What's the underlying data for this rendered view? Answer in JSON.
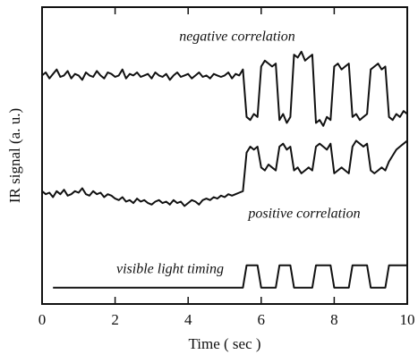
{
  "chart_data": {
    "type": "line",
    "x_label": "Time ( sec )",
    "y_label": "IR signal (a. u.)",
    "annotations": [
      "negative correlation",
      "positive correlation",
      "visible light timing"
    ],
    "x": [
      0,
      0.1,
      0.2,
      0.3,
      0.4,
      0.5,
      0.6,
      0.7,
      0.8,
      0.9,
      1,
      1.1,
      1.2,
      1.3,
      1.4,
      1.5,
      1.6,
      1.7,
      1.8,
      1.9,
      2,
      2.1,
      2.2,
      2.3,
      2.4,
      2.5,
      2.6,
      2.7,
      2.8,
      2.9,
      3,
      3.1,
      3.2,
      3.3,
      3.4,
      3.5,
      3.6,
      3.7,
      3.8,
      3.9,
      4,
      4.1,
      4.2,
      4.3,
      4.4,
      4.5,
      4.6,
      4.7,
      4.8,
      4.9,
      5,
      5.1,
      5.2,
      5.3,
      5.4,
      5.5,
      5.6,
      5.7,
      5.8,
      5.9,
      6,
      6.1,
      6.2,
      6.3,
      6.4,
      6.5,
      6.6,
      6.7,
      6.8,
      6.9,
      7,
      7.1,
      7.2,
      7.3,
      7.4,
      7.5,
      7.6,
      7.7,
      7.8,
      7.9,
      8,
      8.1,
      8.2,
      8.3,
      8.4,
      8.5,
      8.6,
      8.7,
      8.8,
      8.9,
      9,
      9.1,
      9.2,
      9.3,
      9.4,
      9.5,
      9.6,
      9.7,
      9.8,
      9.9,
      10
    ],
    "series": [
      {
        "color": "#111111",
        "values": [
          7.7,
          7.8,
          7.6,
          7.75,
          7.9,
          7.65,
          7.7,
          7.85,
          7.6,
          7.75,
          7.7,
          7.55,
          7.8,
          7.7,
          7.65,
          7.85,
          7.7,
          7.6,
          7.8,
          7.75,
          7.65,
          7.7,
          7.9,
          7.6,
          7.75,
          7.7,
          7.8,
          7.65,
          7.7,
          7.75,
          7.6,
          7.8,
          7.7,
          7.65,
          7.75,
          7.55,
          7.7,
          7.8,
          7.65,
          7.7,
          7.75,
          7.6,
          7.7,
          7.8,
          7.65,
          7.7,
          7.6,
          7.75,
          7.7,
          7.65,
          7.7,
          7.8,
          7.6,
          7.75,
          7.7,
          7.9,
          6.3,
          6.2,
          6.4,
          6.3,
          8.0,
          8.2,
          8.1,
          8.0,
          8.1,
          6.2,
          6.4,
          6.1,
          6.3,
          8.4,
          8.3,
          8.5,
          8.2,
          8.3,
          8.4,
          6.1,
          6.2,
          6.0,
          6.3,
          6.2,
          8.0,
          8.1,
          7.9,
          8.0,
          8.1,
          6.3,
          6.4,
          6.2,
          6.3,
          6.4,
          7.9,
          8.0,
          8.1,
          7.9,
          8.0,
          6.3,
          6.2,
          6.4,
          6.3,
          6.5,
          6.4
        ]
      },
      {
        "color": "#111111",
        "values": [
          3.8,
          3.7,
          3.75,
          3.6,
          3.8,
          3.7,
          3.85,
          3.65,
          3.7,
          3.8,
          3.75,
          3.9,
          3.7,
          3.65,
          3.8,
          3.7,
          3.75,
          3.6,
          3.7,
          3.65,
          3.55,
          3.5,
          3.6,
          3.45,
          3.5,
          3.4,
          3.55,
          3.45,
          3.5,
          3.4,
          3.35,
          3.45,
          3.5,
          3.4,
          3.45,
          3.35,
          3.5,
          3.4,
          3.45,
          3.3,
          3.4,
          3.5,
          3.45,
          3.35,
          3.5,
          3.55,
          3.5,
          3.6,
          3.55,
          3.65,
          3.6,
          3.7,
          3.65,
          3.7,
          3.75,
          3.8,
          5.1,
          5.3,
          5.2,
          5.3,
          4.6,
          4.5,
          4.7,
          4.6,
          4.5,
          5.3,
          5.4,
          5.2,
          5.3,
          4.5,
          4.6,
          4.4,
          4.5,
          4.6,
          4.5,
          5.3,
          5.4,
          5.3,
          5.2,
          5.4,
          4.4,
          4.5,
          4.6,
          4.5,
          4.4,
          5.3,
          5.5,
          5.4,
          5.3,
          5.4,
          4.5,
          4.4,
          4.5,
          4.6,
          4.5,
          4.8,
          5.0,
          5.2,
          5.3,
          5.4,
          5.5
        ]
      },
      {
        "color": "#111111",
        "values": [
          null,
          null,
          null,
          0.55,
          0.55,
          0.55,
          0.55,
          0.55,
          0.55,
          0.55,
          0.55,
          0.55,
          0.55,
          0.55,
          0.55,
          0.55,
          0.55,
          0.55,
          0.55,
          0.55,
          0.55,
          0.55,
          0.55,
          0.55,
          0.55,
          0.55,
          0.55,
          0.55,
          0.55,
          0.55,
          0.55,
          0.55,
          0.55,
          0.55,
          0.55,
          0.55,
          0.55,
          0.55,
          0.55,
          0.55,
          0.55,
          0.55,
          0.55,
          0.55,
          0.55,
          0.55,
          0.55,
          0.55,
          0.55,
          0.55,
          0.55,
          0.55,
          0.55,
          0.55,
          0.55,
          0.55,
          1.3,
          1.3,
          1.3,
          1.3,
          0.55,
          0.55,
          0.55,
          0.55,
          0.55,
          1.3,
          1.3,
          1.3,
          1.3,
          0.55,
          0.55,
          0.55,
          0.55,
          0.55,
          0.55,
          1.3,
          1.3,
          1.3,
          1.3,
          1.3,
          0.55,
          0.55,
          0.55,
          0.55,
          0.55,
          1.3,
          1.3,
          1.3,
          1.3,
          1.3,
          0.55,
          0.55,
          0.55,
          0.55,
          0.55,
          1.3,
          1.3,
          1.3,
          1.3,
          1.3,
          1.3
        ]
      }
    ],
    "xlim": [
      0,
      10
    ],
    "xticks": [
      0,
      2,
      4,
      6,
      8,
      10
    ],
    "ylim": [
      0,
      10
    ]
  }
}
